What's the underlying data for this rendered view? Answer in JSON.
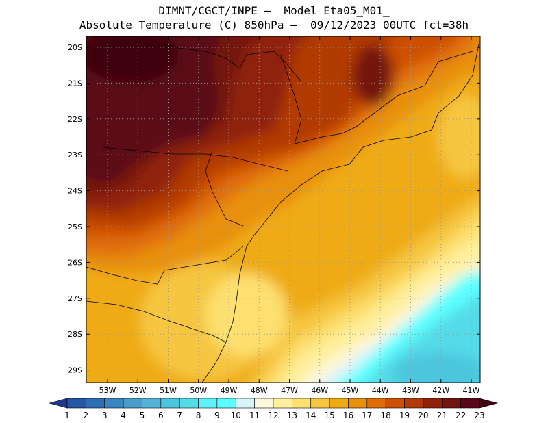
{
  "title": {
    "line1": "DIMNT/CGCT/INPE —  Model Eta05_M01_",
    "line2": "Absolute Temperature (C) 850hPa —  09/12/2023 00UTC fct=38h"
  },
  "map": {
    "lat_labels": [
      "20S",
      "21S",
      "22S",
      "23S",
      "24S",
      "25S",
      "26S",
      "27S",
      "28S",
      "29S"
    ],
    "lon_labels": [
      "53W",
      "52W",
      "51W",
      "50W",
      "49W",
      "48W",
      "47W",
      "46W",
      "45W",
      "44W",
      "43W",
      "42W",
      "41W"
    ]
  },
  "colorbar": {
    "labels": [
      "1",
      "2",
      "3",
      "4",
      "5",
      "6",
      "7",
      "8",
      "9",
      "10",
      "11",
      "12",
      "13",
      "14",
      "15",
      "16",
      "17",
      "18",
      "19",
      "20",
      "21",
      "22",
      "23"
    ],
    "colors": [
      "#1f3a8c",
      "#2556a3",
      "#2f6fb3",
      "#3b86c1",
      "#4a9ccb",
      "#55b3d8",
      "#4cc6dd",
      "#55dbe8",
      "#5ef2f8",
      "#5cffff",
      "#d8f4fb",
      "#fff7dc",
      "#fff0a0",
      "#fde070",
      "#f6c640",
      "#efab14",
      "#e8900a",
      "#df6e08",
      "#cd5006",
      "#b13a06",
      "#8f2208",
      "#741410",
      "#5a0818",
      "#3e0410"
    ]
  }
}
